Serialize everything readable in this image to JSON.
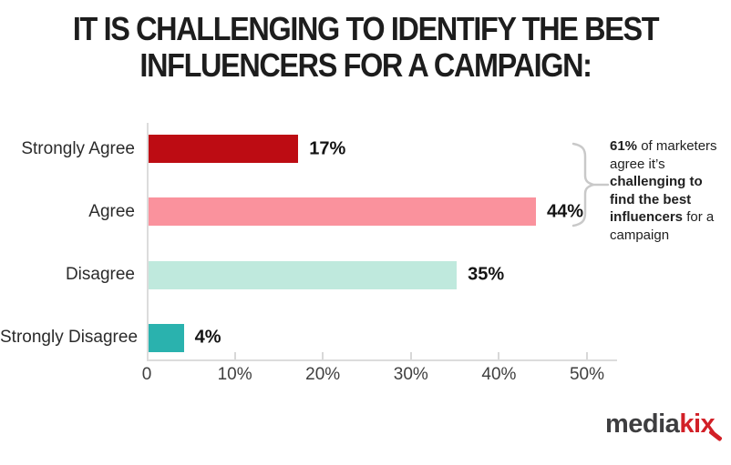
{
  "page": {
    "title_lines": [
      "IT IS CHALLENGING TO IDENTIFY THE BEST",
      "INFLUENCERS FOR A CAMPAIGN:"
    ]
  },
  "chart_data": {
    "type": "bar",
    "orientation": "horizontal",
    "title": "IT IS CHALLENGING TO IDENTIFY THE BEST INFLUENCERS FOR A CAMPAIGN:",
    "categories": [
      "Strongly Agree",
      "Agree",
      "Disagree",
      "Strongly Disagree"
    ],
    "values": [
      17,
      44,
      35,
      4
    ],
    "value_labels": [
      "17%",
      "44%",
      "35%",
      "4%"
    ],
    "bar_colors": [
      "#bd0c13",
      "#fa929d",
      "#bfe9dd",
      "#2ab2ae"
    ],
    "xlim": [
      0,
      53
    ],
    "x_ticks": [
      {
        "value": 0,
        "label": "0"
      },
      {
        "value": 10,
        "label": "10%"
      },
      {
        "value": 20,
        "label": "20%"
      },
      {
        "value": 30,
        "label": "30%"
      },
      {
        "value": 40,
        "label": "40%"
      },
      {
        "value": 50,
        "label": "50%"
      }
    ],
    "grid": false,
    "legend": "none"
  },
  "annotation": {
    "segments": [
      {
        "text": "61%",
        "bold": true
      },
      {
        "text": " of marketers agree it’s ",
        "bold": false
      },
      {
        "text": "challenging to find the best influencers",
        "bold": true
      },
      {
        "text": " for a campaign",
        "bold": false
      }
    ],
    "brace_color": "#c9c9c9"
  },
  "logo": {
    "part1": "media",
    "part2": "kix"
  }
}
